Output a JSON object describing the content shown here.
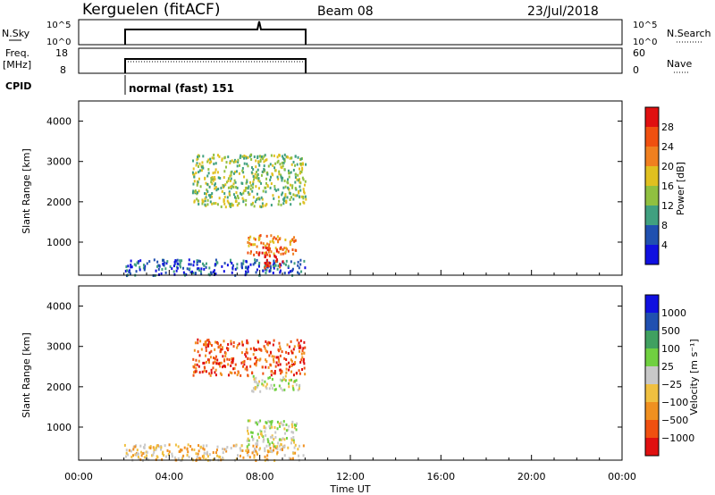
{
  "header": {
    "station": "Kerguelen (fitACF)",
    "beam": "Beam 08",
    "date": "23/Jul/2018"
  },
  "nsky_panel": {
    "left_label": "N.Sky",
    "left_ticks": [
      "10^5",
      "10^0"
    ],
    "right_label": "N.Search",
    "right_ticks": [
      "10^5",
      "10^0"
    ]
  },
  "freq_panel": {
    "left_label_line1": "Freq.",
    "left_label_line2": "[MHz]",
    "left_ticks": [
      "18",
      "8"
    ],
    "right_label": "Nave",
    "right_ticks": [
      "60",
      "0"
    ]
  },
  "cpid": {
    "label": "CPID",
    "mode": "normal (fast) 151"
  },
  "chart_data": [
    {
      "type": "heatmap",
      "name": "power",
      "ylabel": "Slant Range [km]",
      "ylim": [
        180,
        4500
      ],
      "yticks": [
        "1000",
        "2000",
        "3000",
        "4000"
      ],
      "xlim_hours": [
        0,
        24
      ],
      "colorbar_label": "Power [dB]",
      "colorbar_ticks": [
        "4",
        "8",
        "12",
        "16",
        "20",
        "24",
        "28"
      ],
      "colors": [
        "#1010e0",
        "#2050b0",
        "#40a080",
        "#90c040",
        "#e0c020",
        "#f08020",
        "#f05010",
        "#e01010"
      ],
      "regions": [
        {
          "t": [
            2.0,
            10.0
          ],
          "r": [
            200,
            600
          ],
          "level": 1
        },
        {
          "t": [
            7.4,
            9.6
          ],
          "r": [
            700,
            1200
          ],
          "level": 5
        },
        {
          "t": [
            7.9,
            9.0
          ],
          "r": [
            380,
            900
          ],
          "level": 7
        },
        {
          "t": [
            5.0,
            10.0
          ],
          "r": [
            1900,
            3200
          ],
          "level": 3
        }
      ]
    },
    {
      "type": "heatmap",
      "name": "velocity",
      "ylabel": "Slant Range [km]",
      "ylim": [
        180,
        4500
      ],
      "yticks": [
        "1000",
        "2000",
        "3000",
        "4000"
      ],
      "xlim_hours": [
        0,
        24
      ],
      "xticks": [
        "00:00",
        "04:00",
        "08:00",
        "12:00",
        "16:00",
        "20:00",
        "00:00"
      ],
      "xlabel": "Time UT",
      "colorbar_label": "Velocity [m s⁻¹]",
      "colorbar_ticks": [
        "1000",
        "500",
        "100",
        "25",
        "−25",
        "−100",
        "−500",
        "−1000"
      ],
      "colors": [
        "#1010e0",
        "#2050b0",
        "#40a060",
        "#70d040",
        "#c8c8c8",
        "#f0c040",
        "#f09020",
        "#f05010",
        "#e01010"
      ],
      "regions": [
        {
          "t": [
            2.0,
            10.0
          ],
          "r": [
            200,
            600
          ],
          "level": 5
        },
        {
          "t": [
            7.4,
            9.6
          ],
          "r": [
            500,
            1200
          ],
          "level": 4
        },
        {
          "t": [
            5.0,
            10.0
          ],
          "r": [
            2300,
            3200
          ],
          "level": 7
        },
        {
          "t": [
            7.6,
            9.8
          ],
          "r": [
            1900,
            2300
          ],
          "level": 4
        }
      ]
    }
  ]
}
